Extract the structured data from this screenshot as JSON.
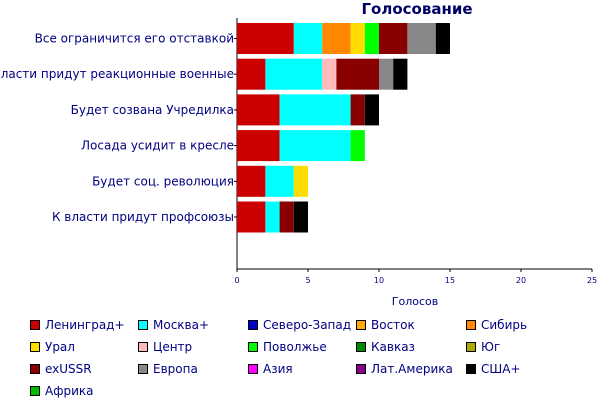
{
  "chart_data": {
    "type": "bar",
    "orientation": "horizontal",
    "stacked": true,
    "title": "Голосование",
    "xlabel": "Голосов",
    "ylabel": "",
    "xlim": [
      0,
      25
    ],
    "xticks": [
      0,
      5,
      10,
      15,
      20,
      25
    ],
    "grid": false,
    "legend_position": "bottom",
    "categories": [
      "Все ограничится его отставкой",
      "К власти придут реакционные военные",
      "Будет созвана Учредилка",
      "Лосада усидит в кресле",
      "Будет соц. революция",
      "К власти придут профсоюзы"
    ],
    "series": [
      {
        "name": "Ленинград+",
        "color": "#cc0000",
        "values": [
          4,
          2,
          3,
          3,
          2,
          2
        ]
      },
      {
        "name": "Москва+",
        "color": "#00ffff",
        "values": [
          2,
          4,
          5,
          5,
          2,
          1
        ]
      },
      {
        "name": "Северо-Запад",
        "color": "#0000cc",
        "values": [
          0,
          0,
          0,
          0,
          0,
          0
        ]
      },
      {
        "name": "Восток",
        "color": "#ffaa00",
        "values": [
          0,
          0,
          0,
          0,
          0,
          0
        ]
      },
      {
        "name": "Сибирь",
        "color": "#ff8800",
        "values": [
          2,
          0,
          0,
          0,
          0,
          0
        ]
      },
      {
        "name": "Урал",
        "color": "#ffdd00",
        "values": [
          1,
          0,
          0,
          0,
          1,
          0
        ]
      },
      {
        "name": "Центр",
        "color": "#ffbbbb",
        "values": [
          0,
          1,
          0,
          0,
          0,
          0
        ]
      },
      {
        "name": "Поволжье",
        "color": "#00ff00",
        "values": [
          1,
          0,
          0,
          1,
          0,
          0
        ]
      },
      {
        "name": "Кавказ",
        "color": "#008800",
        "values": [
          0,
          0,
          0,
          0,
          0,
          0
        ]
      },
      {
        "name": "Юг",
        "color": "#aaaa00",
        "values": [
          0,
          0,
          0,
          0,
          0,
          0
        ]
      },
      {
        "name": "exUSSR",
        "color": "#880000",
        "values": [
          2,
          3,
          1,
          0,
          0,
          1
        ]
      },
      {
        "name": "Европа",
        "color": "#888888",
        "values": [
          2,
          1,
          0,
          0,
          0,
          0
        ]
      },
      {
        "name": "Азия",
        "color": "#ff00ff",
        "values": [
          0,
          0,
          0,
          0,
          0,
          0
        ]
      },
      {
        "name": "Лат.Америка",
        "color": "#880088",
        "values": [
          0,
          0,
          0,
          0,
          0,
          0
        ]
      },
      {
        "name": "США+",
        "color": "#000000",
        "values": [
          1,
          1,
          1,
          0,
          0,
          1
        ]
      },
      {
        "name": "Африка",
        "color": "#00bb00",
        "values": [
          0,
          0,
          0,
          0,
          0,
          0
        ]
      }
    ]
  }
}
